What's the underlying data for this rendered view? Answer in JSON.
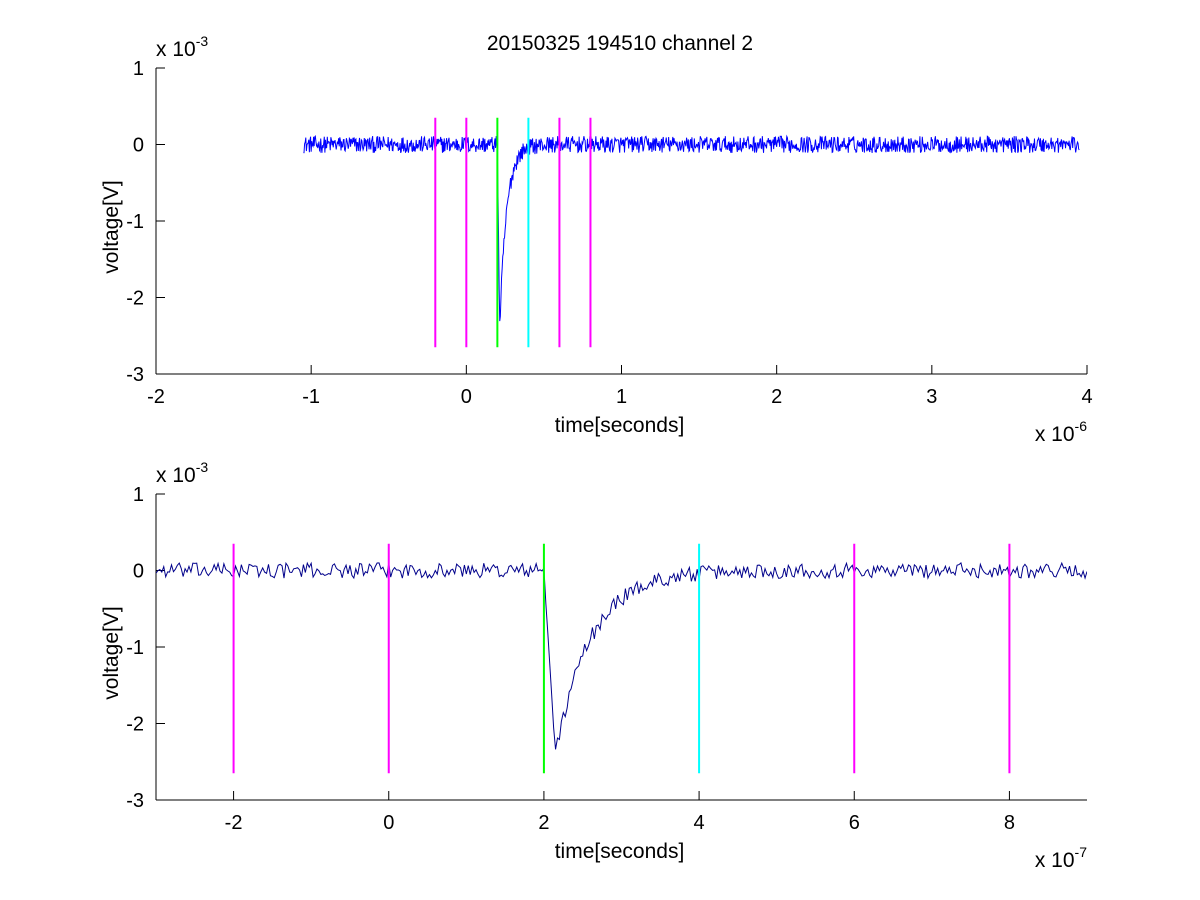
{
  "figure": {
    "title": "20150325 194510 channel 2"
  },
  "chart_data": [
    {
      "type": "line",
      "panel": "top",
      "xlabel": "time[seconds]",
      "ylabel": "voltage[V]",
      "x_exponent_label": "x 10",
      "x_exponent": "-6",
      "y_exponent_label": "x 10",
      "y_exponent": "-3",
      "x_scale": 1e-06,
      "y_scale": 0.001,
      "xlim": [
        -2e-06,
        4e-06
      ],
      "ylim": [
        -0.003,
        0.001
      ],
      "xticks": [
        -2e-06,
        -1e-06,
        0,
        1e-06,
        2e-06,
        3e-06,
        4e-06
      ],
      "xtick_labels": [
        "-2",
        "-1",
        "0",
        "1",
        "2",
        "3",
        "4"
      ],
      "yticks": [
        -0.003,
        -0.002,
        -0.001,
        0,
        0.001
      ],
      "ytick_labels": [
        "-3",
        "-2",
        "-1",
        "0",
        "1"
      ],
      "grid": false,
      "signal": {
        "color": "#0000ff",
        "x_start": -1.05e-06,
        "x_end": 3.95e-06,
        "baseline": 0,
        "noise_amplitude": 0.00011,
        "pulse_start": 2e-07,
        "pulse_peak_time": 2.15e-07,
        "pulse_peak": -0.0024,
        "pulse_recovery_end": 3.6e-07
      },
      "markers": [
        {
          "x": -2e-07,
          "color": "#ff00ff"
        },
        {
          "x": 0,
          "color": "#ff00ff"
        },
        {
          "x": 2e-07,
          "color": "#00ff00"
        },
        {
          "x": 4e-07,
          "color": "#00ffff"
        },
        {
          "x": 6e-07,
          "color": "#ff00ff"
        },
        {
          "x": 8e-07,
          "color": "#ff00ff"
        }
      ],
      "marker_range": [
        -0.00265,
        0.00035
      ]
    },
    {
      "type": "line",
      "panel": "bottom",
      "xlabel": "time[seconds]",
      "ylabel": "voltage[V]",
      "x_exponent_label": "x 10",
      "x_exponent": "-7",
      "y_exponent_label": "x 10",
      "y_exponent": "-3",
      "x_scale": 1e-07,
      "y_scale": 0.001,
      "xlim": [
        -3e-07,
        9e-07
      ],
      "ylim": [
        -0.003,
        0.001
      ],
      "xticks": [
        -2e-07,
        0,
        2e-07,
        4e-07,
        6e-07,
        8e-07
      ],
      "xtick_labels": [
        "-2",
        "0",
        "2",
        "4",
        "6",
        "8"
      ],
      "yticks": [
        -0.003,
        -0.002,
        -0.001,
        0,
        0.001
      ],
      "ytick_labels": [
        "-3",
        "-2",
        "-1",
        "0",
        "1"
      ],
      "grid": false,
      "signal": {
        "color": "#00008b",
        "x_start": -3e-07,
        "x_end": 9e-07,
        "baseline": 0,
        "noise_amplitude": 0.0001,
        "pulse_start": 2e-07,
        "pulse_peak_time": 2.15e-07,
        "pulse_peak": -0.0024,
        "pulse_recovery_end": 3.6e-07
      },
      "markers": [
        {
          "x": -2e-07,
          "color": "#ff00ff"
        },
        {
          "x": 0,
          "color": "#ff00ff"
        },
        {
          "x": 2e-07,
          "color": "#00ff00"
        },
        {
          "x": 4e-07,
          "color": "#00ffff"
        },
        {
          "x": 6e-07,
          "color": "#ff00ff"
        },
        {
          "x": 8e-07,
          "color": "#ff00ff"
        }
      ],
      "marker_range": [
        -0.00265,
        0.00035
      ]
    }
  ]
}
